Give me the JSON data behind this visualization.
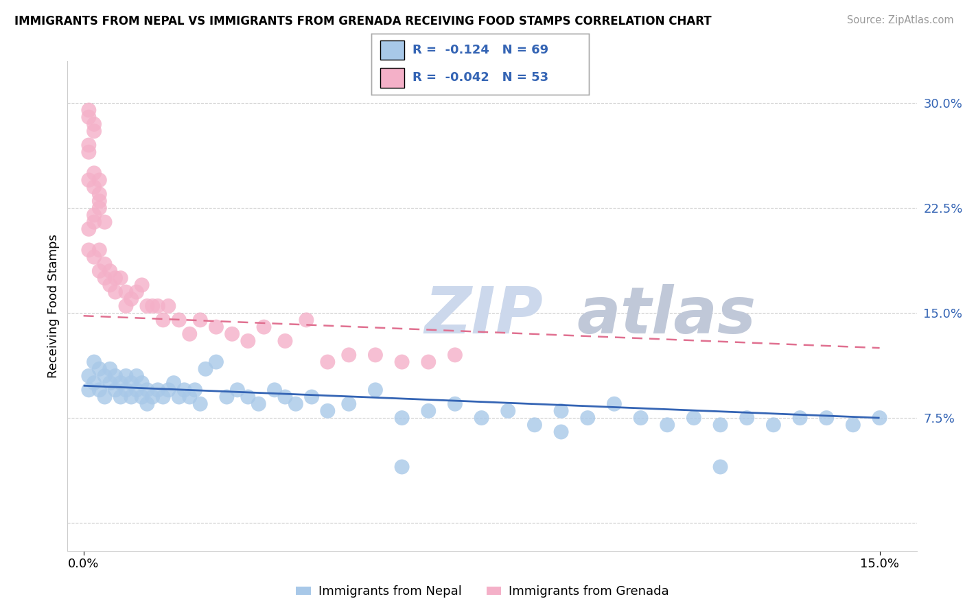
{
  "title": "IMMIGRANTS FROM NEPAL VS IMMIGRANTS FROM GRENADA RECEIVING FOOD STAMPS CORRELATION CHART",
  "source": "Source: ZipAtlas.com",
  "ylabel": "Receiving Food Stamps",
  "nepal_color": "#a8c8e8",
  "grenada_color": "#f4b0c8",
  "nepal_line_color": "#3464b4",
  "grenada_line_color": "#e07090",
  "legend_nepal_r": "-0.124",
  "legend_nepal_n": "69",
  "legend_grenada_r": "-0.042",
  "legend_grenada_n": "53",
  "ytick_positions": [
    0.0,
    0.075,
    0.15,
    0.225,
    0.3
  ],
  "ytick_labels": [
    "",
    "7.5%",
    "15.0%",
    "22.5%",
    "30.0%"
  ],
  "xtick_positions": [
    0.0,
    0.15
  ],
  "xtick_labels": [
    "0.0%",
    "15.0%"
  ],
  "xlim": [
    -0.003,
    0.157
  ],
  "ylim": [
    -0.02,
    0.33
  ],
  "nepal_x": [
    0.001,
    0.001,
    0.002,
    0.002,
    0.003,
    0.003,
    0.004,
    0.004,
    0.005,
    0.005,
    0.006,
    0.006,
    0.007,
    0.007,
    0.008,
    0.008,
    0.009,
    0.009,
    0.01,
    0.01,
    0.011,
    0.011,
    0.012,
    0.012,
    0.013,
    0.014,
    0.015,
    0.016,
    0.017,
    0.018,
    0.019,
    0.02,
    0.021,
    0.022,
    0.023,
    0.025,
    0.027,
    0.029,
    0.031,
    0.033,
    0.036,
    0.038,
    0.04,
    0.043,
    0.046,
    0.05,
    0.055,
    0.06,
    0.065,
    0.07,
    0.075,
    0.08,
    0.085,
    0.09,
    0.095,
    0.1,
    0.105,
    0.11,
    0.115,
    0.12,
    0.125,
    0.13,
    0.135,
    0.14,
    0.145,
    0.15,
    0.06,
    0.09,
    0.12
  ],
  "nepal_y": [
    0.105,
    0.095,
    0.115,
    0.1,
    0.11,
    0.095,
    0.105,
    0.09,
    0.11,
    0.1,
    0.105,
    0.095,
    0.1,
    0.09,
    0.105,
    0.095,
    0.1,
    0.09,
    0.105,
    0.095,
    0.1,
    0.09,
    0.095,
    0.085,
    0.09,
    0.095,
    0.09,
    0.095,
    0.1,
    0.09,
    0.095,
    0.09,
    0.095,
    0.085,
    0.11,
    0.115,
    0.09,
    0.095,
    0.09,
    0.085,
    0.095,
    0.09,
    0.085,
    0.09,
    0.08,
    0.085,
    0.095,
    0.075,
    0.08,
    0.085,
    0.075,
    0.08,
    0.07,
    0.08,
    0.075,
    0.085,
    0.075,
    0.07,
    0.075,
    0.07,
    0.075,
    0.07,
    0.075,
    0.075,
    0.07,
    0.075,
    0.04,
    0.065,
    0.04
  ],
  "grenada_x": [
    0.001,
    0.001,
    0.002,
    0.002,
    0.003,
    0.003,
    0.004,
    0.004,
    0.005,
    0.005,
    0.006,
    0.006,
    0.007,
    0.008,
    0.009,
    0.01,
    0.011,
    0.012,
    0.013,
    0.014,
    0.015,
    0.016,
    0.018,
    0.02,
    0.022,
    0.025,
    0.028,
    0.031,
    0.034,
    0.038,
    0.042,
    0.046,
    0.05,
    0.055,
    0.06,
    0.065,
    0.07,
    0.008,
    0.003,
    0.004,
    0.002,
    0.001,
    0.002,
    0.003,
    0.001,
    0.001,
    0.002,
    0.002,
    0.003,
    0.003,
    0.002,
    0.001,
    0.001
  ],
  "grenada_y": [
    0.21,
    0.195,
    0.215,
    0.19,
    0.18,
    0.195,
    0.175,
    0.185,
    0.17,
    0.18,
    0.175,
    0.165,
    0.175,
    0.165,
    0.16,
    0.165,
    0.17,
    0.155,
    0.155,
    0.155,
    0.145,
    0.155,
    0.145,
    0.135,
    0.145,
    0.14,
    0.135,
    0.13,
    0.14,
    0.13,
    0.145,
    0.115,
    0.12,
    0.12,
    0.115,
    0.115,
    0.12,
    0.155,
    0.225,
    0.215,
    0.285,
    0.245,
    0.24,
    0.245,
    0.265,
    0.27,
    0.25,
    0.28,
    0.23,
    0.235,
    0.22,
    0.295,
    0.29
  ],
  "nepal_trendline": [
    0.098,
    0.075
  ],
  "grenada_trendline": [
    0.148,
    0.125
  ]
}
